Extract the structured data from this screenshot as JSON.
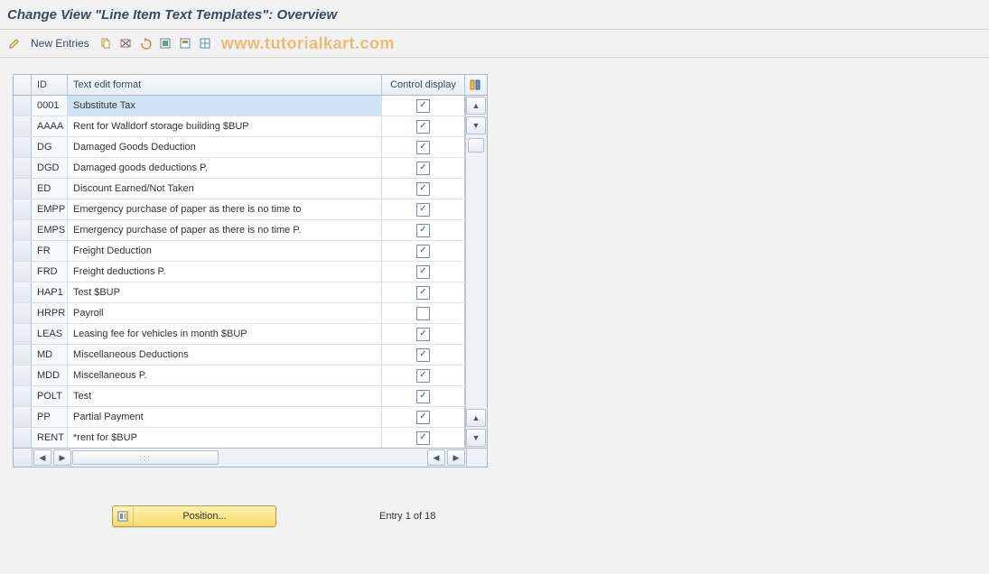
{
  "title": "Change View \"Line Item Text Templates\": Overview",
  "toolbar": {
    "new_entries_label": "New Entries"
  },
  "watermark": "www.tutorialkart.com",
  "columns": {
    "id": "ID",
    "text": "Text edit format",
    "control": "Control display"
  },
  "rows": [
    {
      "id": "0001",
      "text": "Substitute Tax",
      "checked": true,
      "selected": true
    },
    {
      "id": "AAAA",
      "text": "Rent for Walldorf storage building $BUP",
      "checked": true,
      "selected": false
    },
    {
      "id": "DG",
      "text": "Damaged Goods Deduction",
      "checked": true,
      "selected": false
    },
    {
      "id": "DGD",
      "text": "Damaged goods deductions P.",
      "checked": true,
      "selected": false
    },
    {
      "id": "ED",
      "text": "Discount Earned/Not Taken",
      "checked": true,
      "selected": false
    },
    {
      "id": "EMPP",
      "text": "Emergency purchase of paper as there is no time to",
      "checked": true,
      "selected": false
    },
    {
      "id": "EMPS",
      "text": "Emergency purchase of paper as there is no time P.",
      "checked": true,
      "selected": false
    },
    {
      "id": "FR",
      "text": "Freight Deduction",
      "checked": true,
      "selected": false
    },
    {
      "id": "FRD",
      "text": "Freight deductions P.",
      "checked": true,
      "selected": false
    },
    {
      "id": "HAP1",
      "text": "Test $BUP",
      "checked": true,
      "selected": false
    },
    {
      "id": "HRPR",
      "text": "Payroll",
      "checked": false,
      "selected": false
    },
    {
      "id": "LEAS",
      "text": "Leasing fee for vehicles in month $BUP",
      "checked": true,
      "selected": false
    },
    {
      "id": "MD",
      "text": "Miscellaneous Deductions",
      "checked": true,
      "selected": false
    },
    {
      "id": "MDD",
      "text": "Miscellaneous P.",
      "checked": true,
      "selected": false
    },
    {
      "id": "POLT",
      "text": "Test",
      "checked": true,
      "selected": false
    },
    {
      "id": "PP",
      "text": "Partial Payment",
      "checked": true,
      "selected": false
    },
    {
      "id": "RENT",
      "text": "*rent for $BUP",
      "checked": true,
      "selected": false
    }
  ],
  "position_label": "Position...",
  "entry_status": "Entry 1 of 18",
  "colors": {
    "accent_bg": "#cfe3f7",
    "header_grad_top": "#f7fafd",
    "header_grad_bot": "#e8eef4",
    "border": "#a9b8c8",
    "watermark": "#f0b060",
    "position_btn_top": "#fff2b0",
    "position_btn_bot": "#f5dc6a"
  }
}
